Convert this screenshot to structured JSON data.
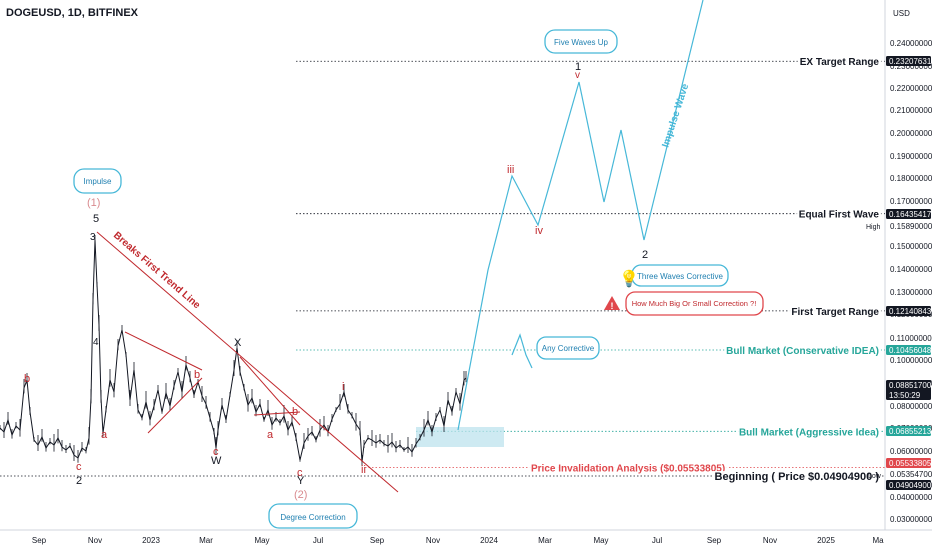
{
  "header": {
    "symbol_line": "DOGEUSD, 1D, BITFINEX"
  },
  "chart_data": {
    "type": "line",
    "title": "DOGEUSD, 1D, BITFINEX",
    "currency": "USD",
    "x_ticks": [
      "Sep",
      "Nov",
      "2023",
      "Mar",
      "May",
      "Jul",
      "Sep",
      "Nov",
      "2024",
      "Mar",
      "May",
      "Jul",
      "Sep",
      "Nov",
      "2025",
      "Ma"
    ],
    "y_ticks": [
      "0.24000000",
      "0.23000000",
      "0.22000000",
      "0.21000000",
      "0.20000000",
      "0.19000000",
      "0.18000000",
      "0.17000000",
      "0.15890000",
      "0.15000000",
      "0.14000000",
      "0.13000000",
      "0.12000000",
      "0.11000000",
      "0.10000000",
      "0.09000000",
      "0.08000000",
      "0.07000000",
      "0.06000000",
      "0.05354700",
      "0.05000000",
      "0.04000000",
      "0.03000000"
    ],
    "y_tick_values": [
      0.24,
      0.23,
      0.22,
      0.21,
      0.2,
      0.19,
      0.18,
      0.17,
      0.1589,
      0.15,
      0.14,
      0.13,
      0.12,
      0.11,
      0.1,
      0.09,
      0.08,
      0.07,
      0.06,
      0.053547,
      0.05,
      0.04,
      0.03
    ],
    "price_tags": [
      {
        "value": "0.23207631",
        "y": 0.23207631,
        "bg": "#131722",
        "fg": "#ffffff"
      },
      {
        "value": "0.16435417",
        "y": 0.16435417,
        "bg": "#131722",
        "fg": "#ffffff"
      },
      {
        "value": "0.12140843",
        "y": 0.12140843,
        "bg": "#131722",
        "fg": "#ffffff"
      },
      {
        "value": "0.10456048",
        "y": 0.10456048,
        "bg": "#26a69a",
        "fg": "#ffffff"
      },
      {
        "value": "0.08851700",
        "sub": "13:50:29",
        "y": 0.088517,
        "bg": "#131722",
        "fg": "#ffffff"
      },
      {
        "value": "0.06855213",
        "y": 0.06855213,
        "bg": "#26a69a",
        "fg": "#ffffff"
      },
      {
        "value": "0.05533805",
        "y": 0.05533805,
        "bg": "#e0474c",
        "fg": "#ffffff"
      },
      {
        "value": "0.04904900",
        "y": 0.049049,
        "bg": "#131722",
        "fg": "#ffffff"
      }
    ],
    "levels": [
      {
        "label": "EX Target Range",
        "y": 0.23207631,
        "color": "#131722",
        "style": "dotted"
      },
      {
        "label": "Equal First Wave",
        "y": 0.16435417,
        "color": "#131722",
        "style": "dotted"
      },
      {
        "label": "First Target Range",
        "y": 0.12140843,
        "color": "#131722",
        "style": "dotted"
      },
      {
        "label": "Bull Market (Conservative IDEA)",
        "y": 0.10456048,
        "color": "#26a69a",
        "style": "dotted"
      },
      {
        "label": "Bull Market (Aggressive Idea)",
        "y": 0.06855213,
        "color": "#26a69a",
        "style": "dotted"
      },
      {
        "label": "Price Invalidation Analysis ($0.05533805)",
        "y": 0.05533805,
        "color": "#e0474c",
        "style": "dotted"
      },
      {
        "label": "Beginning ( Price $0.04904900 )",
        "y": 0.049049,
        "color": "#131722",
        "style": "dotted"
      }
    ],
    "small_labels": {
      "high": "High",
      "low": "Low"
    },
    "annotations": {
      "bubbles": [
        "Impulse",
        "Five Waves Up",
        "Three Waves Corrective",
        "How Much Big Or Small Correction ?!",
        "Any Corrective",
        "Degree Correction"
      ],
      "trendline_text": "Breaks First Trend Line",
      "impulse_wave_text": "Impulse Wave",
      "wave_labels_black": [
        "5",
        "3",
        "4",
        "2",
        "X",
        "W",
        "Y",
        "1",
        "2"
      ],
      "wave_labels_red": [
        "b",
        "a",
        "c",
        "b",
        "c",
        "a",
        "b",
        "c",
        "i",
        "ii",
        "iii",
        "iv",
        "v"
      ],
      "wave_labels_pink": [
        "(1)",
        "(2)"
      ]
    }
  }
}
